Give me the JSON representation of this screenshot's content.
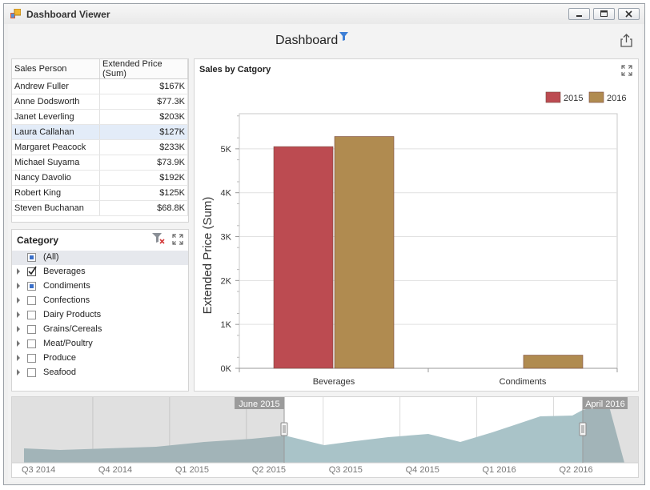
{
  "window": {
    "title": "Dashboard Viewer"
  },
  "dashboard": {
    "title": "Dashboard"
  },
  "grid": {
    "headers": [
      "Sales Person",
      "Extended Price (Sum)"
    ],
    "rows": [
      {
        "name": "Andrew Fuller",
        "value": "$167K"
      },
      {
        "name": "Anne Dodsworth",
        "value": "$77.3K"
      },
      {
        "name": "Janet Leverling",
        "value": "$203K"
      },
      {
        "name": "Laura Callahan",
        "value": "$127K"
      },
      {
        "name": "Margaret Peacock",
        "value": "$233K"
      },
      {
        "name": "Michael Suyama",
        "value": "$73.9K"
      },
      {
        "name": "Nancy Davolio",
        "value": "$192K"
      },
      {
        "name": "Robert King",
        "value": "$125K"
      },
      {
        "name": "Steven Buchanan",
        "value": "$68.8K"
      }
    ],
    "selected_row": "Laura Callahan"
  },
  "category": {
    "title": "Category",
    "items": [
      {
        "label": "(All)",
        "state": "partial",
        "expandable": false
      },
      {
        "label": "Beverages",
        "state": "checked",
        "expandable": true
      },
      {
        "label": "Condiments",
        "state": "partial",
        "expandable": true
      },
      {
        "label": "Confections",
        "state": "unchecked",
        "expandable": true
      },
      {
        "label": "Dairy Products",
        "state": "unchecked",
        "expandable": true
      },
      {
        "label": "Grains/Cereals",
        "state": "unchecked",
        "expandable": true
      },
      {
        "label": "Meat/Poultry",
        "state": "unchecked",
        "expandable": true
      },
      {
        "label": "Produce",
        "state": "unchecked",
        "expandable": true
      },
      {
        "label": "Seafood",
        "state": "unchecked",
        "expandable": true
      }
    ]
  },
  "chart": {
    "title": "Sales by Catgory"
  },
  "chart_data": {
    "type": "bar",
    "categories": [
      "Beverages",
      "Condiments"
    ],
    "series": [
      {
        "name": "2015",
        "color": "#bc4b51",
        "values": [
          5050,
          0
        ]
      },
      {
        "name": "2016",
        "color": "#b08b50",
        "values": [
          5280,
          300
        ]
      }
    ],
    "ylabel": "Extended Price (Sum)",
    "ylim": [
      0,
      5800
    ],
    "yticks": [
      "0K",
      "1K",
      "2K",
      "3K",
      "4K",
      "5K"
    ],
    "ytick_values": [
      0,
      1000,
      2000,
      3000,
      4000,
      5000
    ],
    "legend": "top-right",
    "grid": true
  },
  "range_filter": {
    "quarters": [
      "Q3 2014",
      "Q4 2014",
      "Q1 2015",
      "Q2 2015",
      "Q3 2015",
      "Q4 2015",
      "Q1 2016",
      "Q2 2016"
    ],
    "start_label": "June 2015",
    "end_label": "April 2016"
  },
  "colors": {
    "series_2015": "#bc4b51",
    "series_2016": "#b08b50",
    "range_fill_selected": "#a9c3c8",
    "range_fill_unselected": "#cfcfcf"
  }
}
